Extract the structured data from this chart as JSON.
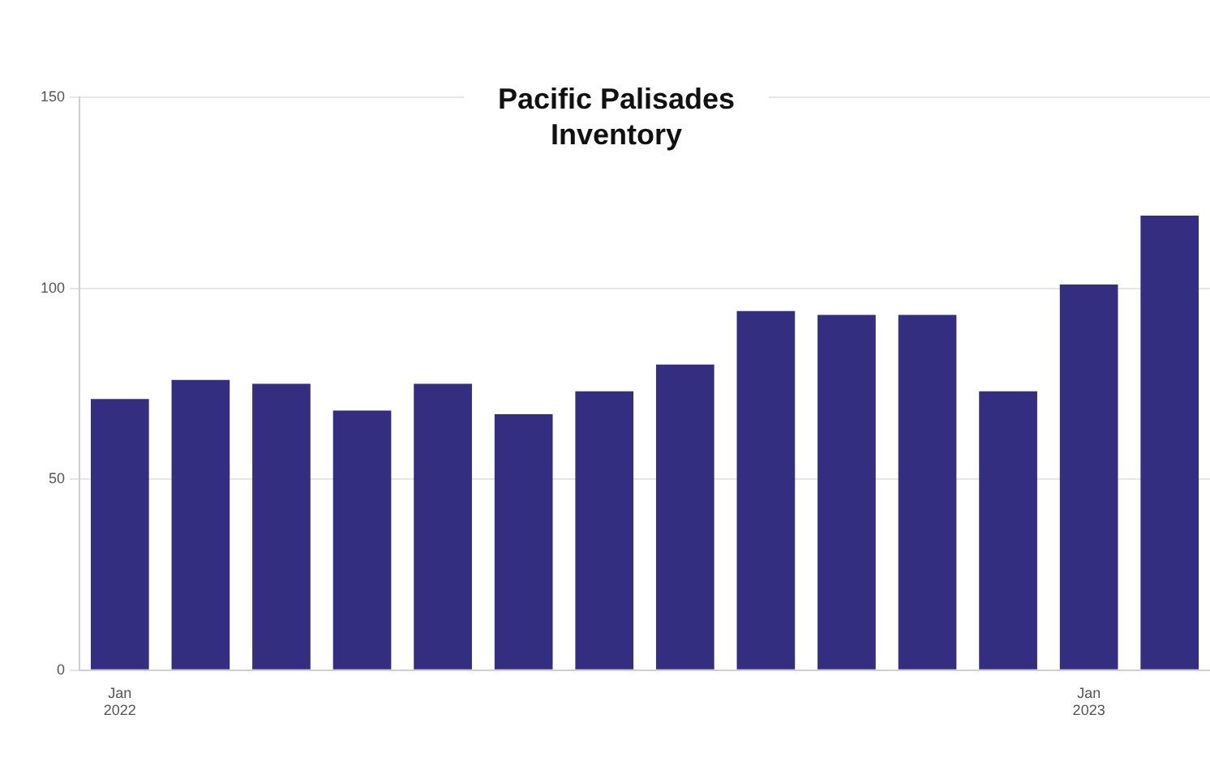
{
  "chart_data": {
    "type": "bar",
    "title": "Pacific Palisades Inventory",
    "categories": [
      "Jan 2022",
      null,
      null,
      null,
      null,
      null,
      null,
      null,
      null,
      null,
      null,
      null,
      "Jan 2023",
      null
    ],
    "values": [
      71,
      76,
      75,
      68,
      75,
      67,
      73,
      80,
      94,
      93,
      93,
      73,
      101,
      119
    ],
    "color": "#332e7f",
    "ylim": [
      0,
      150
    ],
    "yticks": [
      0,
      50,
      100,
      150
    ],
    "grid": "y"
  }
}
